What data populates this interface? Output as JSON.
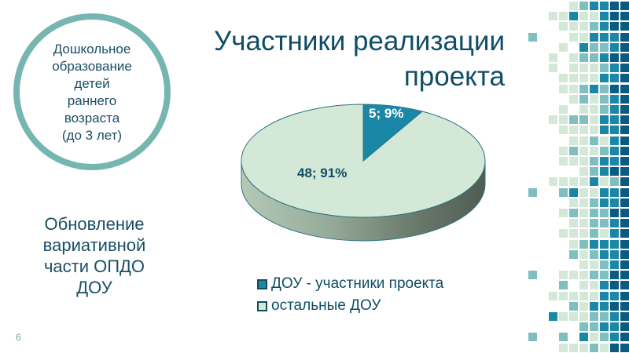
{
  "slide": {
    "page_number": "6",
    "title": "Участники реализации\nпроекта",
    "circle_text": "Дошкольное\nобразование\nдетей\nраннего\nвозраста\n(до 3 лет)",
    "left_text": "Обновление\nвариативной\nчасти ОПДО\nДОУ"
  },
  "colors": {
    "accent_dark": "#0d5a80",
    "accent_teal": "#1b87a6",
    "accent_mid": "#80bfc0",
    "accent_light": "#d4e8d8",
    "text": "#0f4d66",
    "circle_border": "#76b6b0"
  },
  "chart_data": {
    "type": "pie",
    "title": "Участники реализации проекта",
    "categories": [
      "ДОУ - участники проекта",
      "остальные ДОУ"
    ],
    "values": [
      5,
      48
    ],
    "percentages": [
      9,
      91
    ],
    "labels": [
      "5; 9%",
      "48; 91%"
    ],
    "colors": [
      "#1b87a6",
      "#d4e8d8"
    ],
    "legend_position": "bottom",
    "three_d": true
  },
  "legend": {
    "items": [
      {
        "label": "ДОУ - участники проекта",
        "color": "#1b87a6"
      },
      {
        "label": "остальные ДОУ",
        "color": "#d4e8d8"
      }
    ]
  },
  "mosaic": {
    "rows": [
      "....LMTTDD",
      "..LLTLLTDD",
      "...LLLMTDD",
      "M...LLTTTD",
      "...L.TMMTD",
      "..L.LMMTDD",
      "..L.LLLMTD",
      "...LLLLTTD",
      "...LLMTMDD",
      "....LMLMTD",
      "...L.LLMTD",
      "..LLMMLTTD",
      "...LLLLTTD",
      "....LLMLTD",
      "...LMLLMTD",
      "...LLLMTTD",
      ".....LMTDD",
      "..LLLLTLMD",
      "M..MTLLTTD",
      "....LLMTTD",
      "...LMLMMDD",
      "....LLMMTD",
      "...LLLMLTD",
      "....LMTTTD",
      "....MLMTTD",
      ".....LLMTD",
      "M..LLLMMDD",
      "...M.LLTDD",
      "..LLLLLTTD",
      "....MLTTDD",
      "..TLLLMMTD",
      ".....MMTTD",
      "M..M.TLMTD",
      "...LLLMLDD"
    ]
  }
}
